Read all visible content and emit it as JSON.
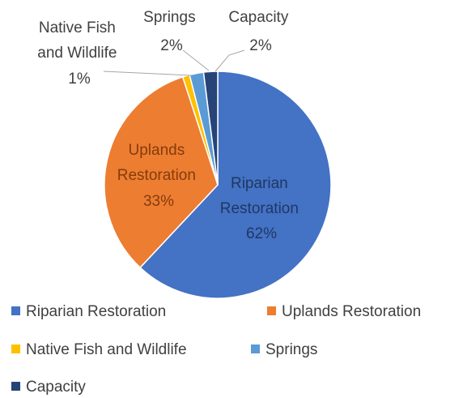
{
  "chart_data": {
    "type": "pie",
    "title": "",
    "slices": [
      {
        "name": "Riparian Restoration",
        "value": 62,
        "label": "62%",
        "color": "#4472C4"
      },
      {
        "name": "Uplands Restoration",
        "value": 33,
        "label": "33%",
        "color": "#ED7D31"
      },
      {
        "name": "Native Fish and Wildlife",
        "value": 1,
        "label": "1%",
        "color": "#FFC000"
      },
      {
        "name": "Springs",
        "value": 2,
        "label": "2%",
        "color": "#5B9BD5"
      },
      {
        "name": "Capacity",
        "value": 2,
        "label": "2%",
        "color": "#264478"
      }
    ],
    "data_labels": {
      "riparian": [
        "Riparian",
        "Restoration",
        "62%"
      ],
      "uplands": [
        "Uplands",
        "Restoration",
        "33%"
      ],
      "native": [
        "Native Fish",
        "and Wildlife",
        "1%"
      ],
      "springs": [
        "Springs",
        "2%"
      ],
      "capacity": [
        "Capacity",
        "2%"
      ]
    },
    "legend": {
      "placement": "bottom",
      "entries": [
        "Riparian Restoration",
        "Uplands Restoration",
        "Native Fish and Wildlife",
        "Springs",
        "Capacity"
      ]
    },
    "label_colors": {
      "inside_riparian": "#1F3864",
      "inside_uplands": "#843C0C",
      "outside": "#404040",
      "leader": "#A6A6A6"
    }
  }
}
